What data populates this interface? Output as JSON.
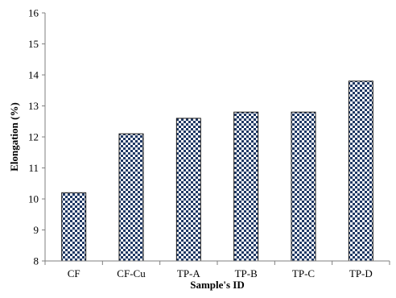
{
  "chart_data": {
    "type": "bar",
    "title": "",
    "xlabel": "Sample's ID",
    "ylabel": "Elongation (%)",
    "categories": [
      "CF",
      "CF-Cu",
      "TP-A",
      "TP-B",
      "TP-C",
      "TP-D"
    ],
    "values": [
      10.2,
      12.1,
      12.6,
      12.8,
      12.8,
      13.8
    ],
    "ylim": [
      8,
      16
    ],
    "yticks": [
      "8",
      "9",
      "10",
      "11",
      "12",
      "13",
      "14",
      "15",
      "16"
    ],
    "grid": false,
    "legend": "none",
    "bar_pattern": "checkerboard",
    "colors": {
      "bar_dark": "#1f3864",
      "bar_light": "#ffffff",
      "axis": "#7f7f7f"
    }
  }
}
